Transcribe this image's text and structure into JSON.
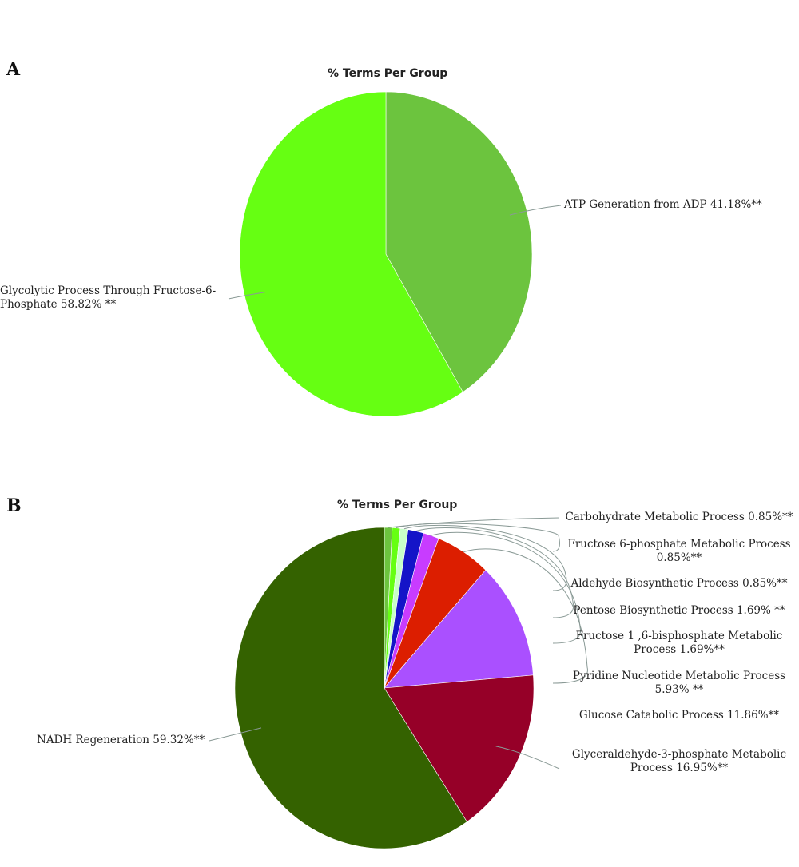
{
  "panels": {
    "a": {
      "letter": "A"
    },
    "b": {
      "letter": "B"
    }
  },
  "chart_data": [
    {
      "type": "pie",
      "title": "% Terms Per Group",
      "slices": [
        {
          "label": "ATP Generation from ADP 41.18%**",
          "value": 41.18,
          "color": "#6cc43e"
        },
        {
          "label": "Glycolytic Process Through Fructose-6-Phosphate 58.82% **",
          "value": 58.82,
          "color": "#66ff12"
        }
      ]
    },
    {
      "type": "pie",
      "title": "% Terms Per Group",
      "slices": [
        {
          "label": "Carbohydrate Metabolic Process 0.85%**",
          "value": 0.85,
          "color": "#6cc43e"
        },
        {
          "label": "Fructose 6-phosphate Metabolic Process 0.85%**",
          "value": 0.85,
          "color": "#66ff12"
        },
        {
          "label": "Aldehyde Biosynthetic Process 0.85%**",
          "value": 0.85,
          "color": "#c8ffc8"
        },
        {
          "label": "Pentose Biosynthetic Process 1.69% **",
          "value": 1.69,
          "color": "#1414c8"
        },
        {
          "label": "Fructose 1 ,6-bisphosphate Metabolic Process 1.69%**",
          "value": 1.69,
          "color": "#c83cff"
        },
        {
          "label": "Pyridine Nucleotide Metabolic Process 5.93% **",
          "value": 5.93,
          "color": "#dc1e00"
        },
        {
          "label": "Glucose Catabolic Process 11.86%**",
          "value": 11.86,
          "color": "#aa50ff"
        },
        {
          "label": "Glyceraldehyde-3-phosphate Metabolic Process 16.95%**",
          "value": 16.95,
          "color": "#960028"
        },
        {
          "label": "NADH Regeneration 59.32%**",
          "value": 59.32,
          "color": "#346200"
        }
      ]
    }
  ],
  "colors": {
    "leader_line": "#8a9a96",
    "slice_border": "#ffffff"
  }
}
